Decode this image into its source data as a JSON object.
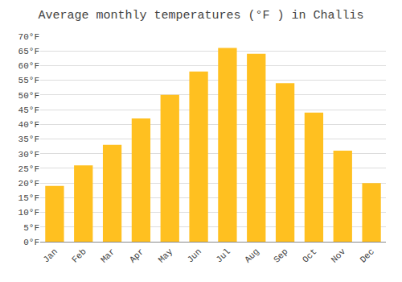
{
  "chart_data": {
    "type": "bar",
    "title": "Average monthly temperatures (°F ) in Challis",
    "categories": [
      "Jan",
      "Feb",
      "Mar",
      "Apr",
      "May",
      "Jun",
      "Jul",
      "Aug",
      "Sep",
      "Oct",
      "Nov",
      "Dec"
    ],
    "values": [
      19,
      26,
      33,
      42,
      50,
      58,
      66,
      64,
      54,
      44,
      31,
      20
    ],
    "color": "#FFC020",
    "ylim": [
      0,
      70
    ],
    "yticks": [
      {
        "value": 0,
        "label": "0°F"
      },
      {
        "value": 5,
        "label": "5°F"
      },
      {
        "value": 10,
        "label": "10°F"
      },
      {
        "value": 15,
        "label": "15°F"
      },
      {
        "value": 20,
        "label": "20°F"
      },
      {
        "value": 25,
        "label": "25°F"
      },
      {
        "value": 30,
        "label": "30°F"
      },
      {
        "value": 35,
        "label": "35°F"
      },
      {
        "value": 40,
        "label": "40°F"
      },
      {
        "value": 45,
        "label": "45°F"
      },
      {
        "value": 50,
        "label": "50°F"
      },
      {
        "value": 55,
        "label": "55°F"
      },
      {
        "value": 60,
        "label": "60°F"
      },
      {
        "value": 65,
        "label": "65°F"
      },
      {
        "value": 70,
        "label": "70°F"
      }
    ],
    "grid": true
  }
}
